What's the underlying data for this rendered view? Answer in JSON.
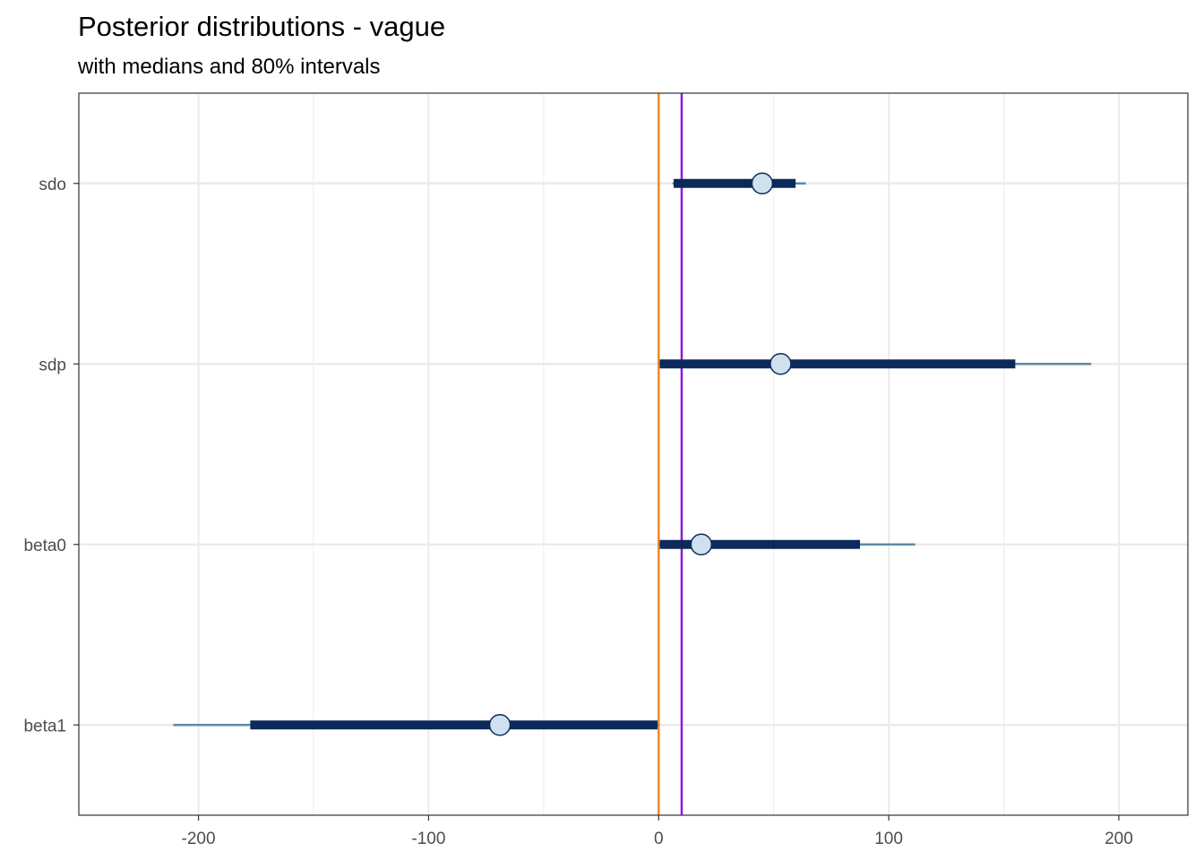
{
  "chart_data": {
    "type": "interval",
    "title": "Posterior distributions - vague",
    "subtitle": "with medians and 80% intervals",
    "xlabel": "",
    "ylabel": "",
    "xlim": [
      -252,
      230
    ],
    "x_ticks": [
      -200,
      -100,
      0,
      100,
      200
    ],
    "x_tick_labels": [
      "-200",
      "-100",
      "0",
      "100",
      "200"
    ],
    "x_minor_ticks": [
      -150,
      -50,
      50,
      150
    ],
    "grid": true,
    "parameters": [
      {
        "name": "sdo",
        "median": 45,
        "inner": [
          6.5,
          59.5
        ],
        "outer": [
          6,
          64
        ]
      },
      {
        "name": "sdp",
        "median": 53,
        "inner": [
          0.5,
          155
        ],
        "outer": [
          0,
          188
        ]
      },
      {
        "name": "beta0",
        "median": 18.5,
        "inner": [
          0.5,
          87.5
        ],
        "outer": [
          0,
          111.5
        ]
      },
      {
        "name": "beta1",
        "median": -69,
        "inner": [
          -177.5,
          -0.5
        ],
        "outer": [
          -211,
          0
        ]
      }
    ],
    "reference_lines": [
      {
        "x": 0,
        "color": "#f0892f"
      },
      {
        "x": 10,
        "color": "#8e1ad8"
      }
    ],
    "colors": {
      "outer_interval": "#5d8aa8",
      "inner_interval": "#0b2a5b",
      "point_fill": "#cfe0ee",
      "point_stroke": "#0b2a5b",
      "grid": "#ebebeb",
      "panel_border": "#333333"
    }
  }
}
